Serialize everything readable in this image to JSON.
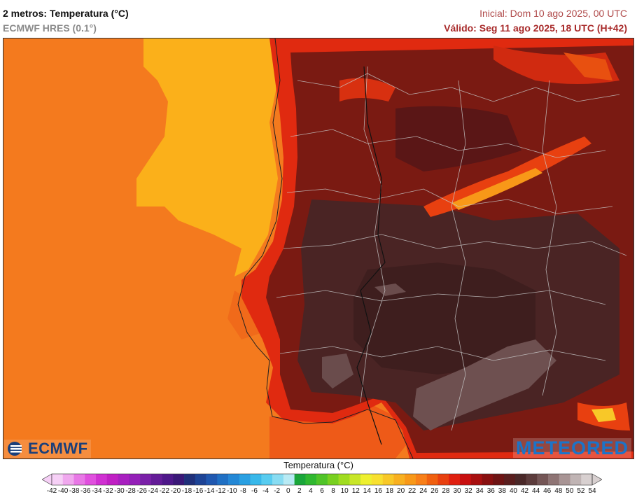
{
  "header": {
    "title": "2 metros: Temperatura (°C)",
    "model": "ECMWF HRES (0.1°)",
    "init": "Inicial: Dom 10 ago 2025, 00 UTC",
    "valid": "Válido: Seg 11 ago 2025, 18 UTC (H+42)"
  },
  "logos": {
    "left": "ECMWF",
    "right": "METEORED"
  },
  "colorbar": {
    "title": "Temperatura (°C)",
    "ticks": [
      "-42",
      "-40",
      "-38",
      "-36",
      "-34",
      "-32",
      "-30",
      "-28",
      "-26",
      "-24",
      "-22",
      "-20",
      "-18",
      "-16",
      "-14",
      "-12",
      "-10",
      "-8",
      "-6",
      "-4",
      "-2",
      "0",
      "2",
      "4",
      "6",
      "8",
      "10",
      "12",
      "14",
      "16",
      "18",
      "20",
      "22",
      "24",
      "26",
      "28",
      "30",
      "32",
      "34",
      "36",
      "38",
      "40",
      "42",
      "44",
      "46",
      "48",
      "50",
      "52",
      "54"
    ],
    "colors": [
      "#f6d0f6",
      "#f0a8ee",
      "#e878e6",
      "#e050de",
      "#d030d2",
      "#c020c4",
      "#a820c0",
      "#9420b8",
      "#7a20a8",
      "#641c98",
      "#4e188a",
      "#3a1878",
      "#20307a",
      "#1e4496",
      "#2058b0",
      "#2070c4",
      "#2488d6",
      "#2aa0e2",
      "#38b8ea",
      "#58ccf0",
      "#88dcf2",
      "#b8eaf4",
      "#1aa63a",
      "#30b830",
      "#50c428",
      "#78d020",
      "#a0dc20",
      "#c8e628",
      "#eef030",
      "#f8e030",
      "#f8c828",
      "#f8b020",
      "#f89818",
      "#f87f18",
      "#f06010",
      "#e84010",
      "#e02010",
      "#c81010",
      "#a81010",
      "#881010",
      "#6e1414",
      "#5a1e1e",
      "#4a2828",
      "#5c3c3c",
      "#745656",
      "#8e7474",
      "#a89494",
      "#c0b4b4",
      "#d8d0d0"
    ]
  },
  "map": {
    "ocean_color": "#f47a1e",
    "cool_coast_color": "#fbb01a",
    "land_hot_color": "#4a2424",
    "land_mid_color": "#6e1a1a",
    "relief_color": "#e83a10"
  }
}
